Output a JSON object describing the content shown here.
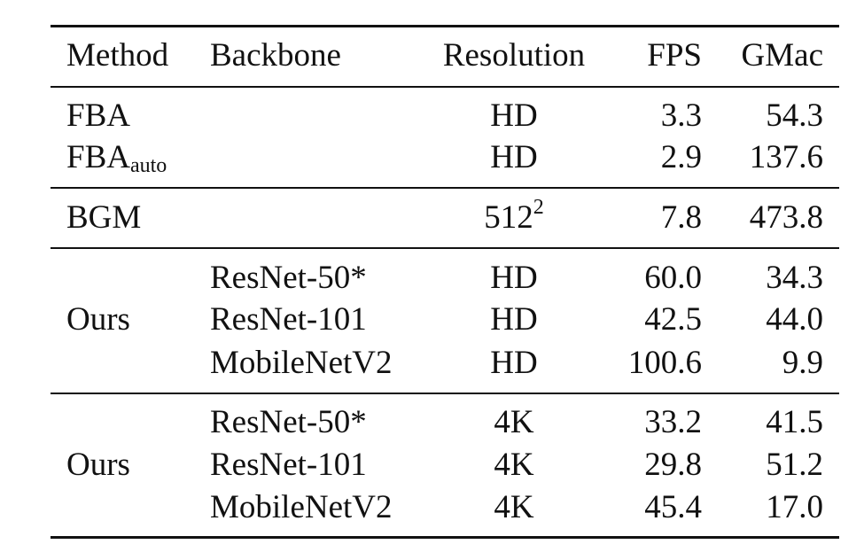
{
  "header": {
    "method": "Method",
    "backbone": "Backbone",
    "resolution": "Resolution",
    "fps": "FPS",
    "gmac": "GMac"
  },
  "rows": [
    {
      "method": "FBA",
      "method_sub": "",
      "backbone": "",
      "resolution": "HD",
      "resolution_sup": "",
      "fps": "3.3",
      "gmac": "54.3"
    },
    {
      "method": "FBA",
      "method_sub": "auto",
      "backbone": "",
      "resolution": "HD",
      "resolution_sup": "",
      "fps": "2.9",
      "gmac": "137.6"
    },
    {
      "method": "BGM",
      "method_sub": "",
      "backbone": "",
      "resolution": "512",
      "resolution_sup": "2",
      "fps": "7.8",
      "gmac": "473.8"
    },
    {
      "method": "",
      "method_sub": "",
      "backbone": "ResNet-50*",
      "resolution": "HD",
      "resolution_sup": "",
      "fps": "60.0",
      "gmac": "34.3"
    },
    {
      "method": "Ours",
      "method_sub": "",
      "backbone": "ResNet-101",
      "resolution": "HD",
      "resolution_sup": "",
      "fps": "42.5",
      "gmac": "44.0"
    },
    {
      "method": "",
      "method_sub": "",
      "backbone": "MobileNetV2",
      "resolution": "HD",
      "resolution_sup": "",
      "fps": "100.6",
      "gmac": "9.9"
    },
    {
      "method": "",
      "method_sub": "",
      "backbone": "ResNet-50*",
      "resolution": "4K",
      "resolution_sup": "",
      "fps": "33.2",
      "gmac": "41.5"
    },
    {
      "method": "Ours",
      "method_sub": "",
      "backbone": "ResNet-101",
      "resolution": "4K",
      "resolution_sup": "",
      "fps": "29.8",
      "gmac": "51.2"
    },
    {
      "method": "",
      "method_sub": "",
      "backbone": "MobileNetV2",
      "resolution": "4K",
      "resolution_sup": "",
      "fps": "45.4",
      "gmac": "17.0"
    }
  ]
}
